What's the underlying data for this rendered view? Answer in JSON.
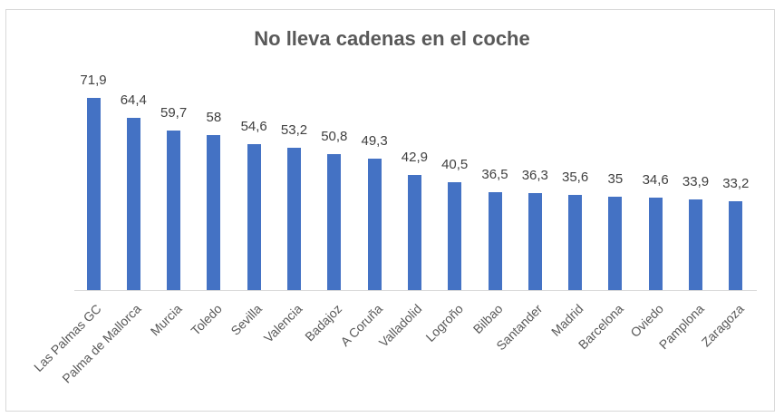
{
  "chart_data": {
    "type": "bar",
    "title": "No lleva cadenas en el coche",
    "xlabel": "",
    "ylabel": "",
    "ylim": [
      0,
      80
    ],
    "grid": false,
    "legend": null,
    "bar_color": "#4472c4",
    "categories": [
      "Las Palmas GC",
      "Palma de Mallorca",
      "Murcia",
      "Toledo",
      "Sevilla",
      "Valencia",
      "Badajoz",
      "A Coruña",
      "Valladolid",
      "Logroño",
      "Bilbao",
      "Santander",
      "Madrid",
      "Barcelona",
      "Oviedo",
      "Pamplona",
      "Zaragoza"
    ],
    "values": [
      71.9,
      64.4,
      59.7,
      58,
      54.6,
      53.2,
      50.8,
      49.3,
      42.9,
      40.5,
      36.5,
      36.3,
      35.6,
      35,
      34.6,
      33.9,
      33.2
    ],
    "value_labels": [
      "71,9",
      "64,4",
      "59,7",
      "58",
      "54,6",
      "53,2",
      "50,8",
      "49,3",
      "42,9",
      "40,5",
      "36,5",
      "36,3",
      "35,6",
      "35",
      "34,6",
      "33,9",
      "33,2"
    ]
  }
}
